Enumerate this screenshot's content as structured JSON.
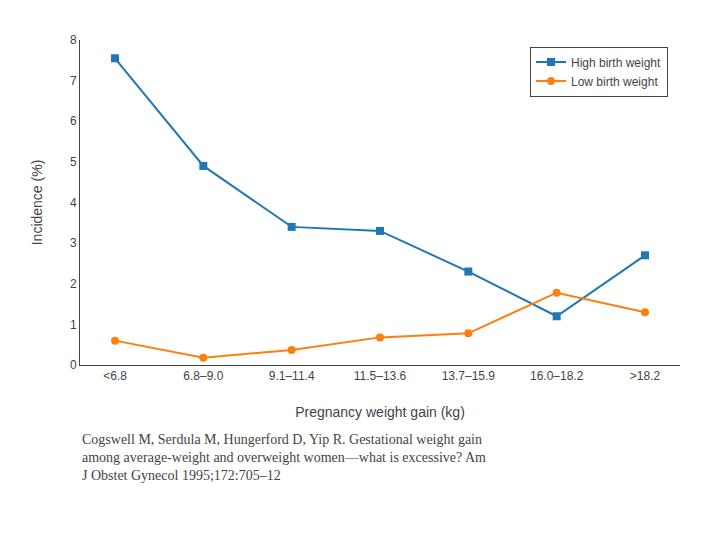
{
  "chart_data": {
    "type": "line",
    "categories": [
      "<6.8",
      "6.8–9.0",
      "9.1–11.4",
      "11.5–13.6",
      "13.7–15.9",
      "16.0–18.2",
      ">18.2"
    ],
    "series": [
      {
        "name": "High birth weight",
        "values": [
          7.55,
          4.9,
          3.4,
          3.3,
          2.3,
          1.2,
          2.7
        ],
        "marker": "square"
      },
      {
        "name": "Low birth weight",
        "values": [
          0.6,
          0.18,
          0.37,
          0.68,
          0.78,
          1.78,
          1.3
        ],
        "marker": "circle"
      }
    ],
    "xlabel": "Pregnancy weight gain (kg)",
    "ylabel": "Incidence (%)",
    "ylim": [
      0,
      8
    ],
    "yticks": [
      0,
      1,
      2,
      3,
      4,
      5,
      6,
      7,
      8
    ],
    "grid": false,
    "legend": "upper right",
    "caption": "Cogswell M, Serdula M, Hungerford D, Yip R. Gestational weight gain\namong average-weight and overweight women—what is excessive? Am\nJ Obstet Gynecol 1995;172:705–12"
  }
}
